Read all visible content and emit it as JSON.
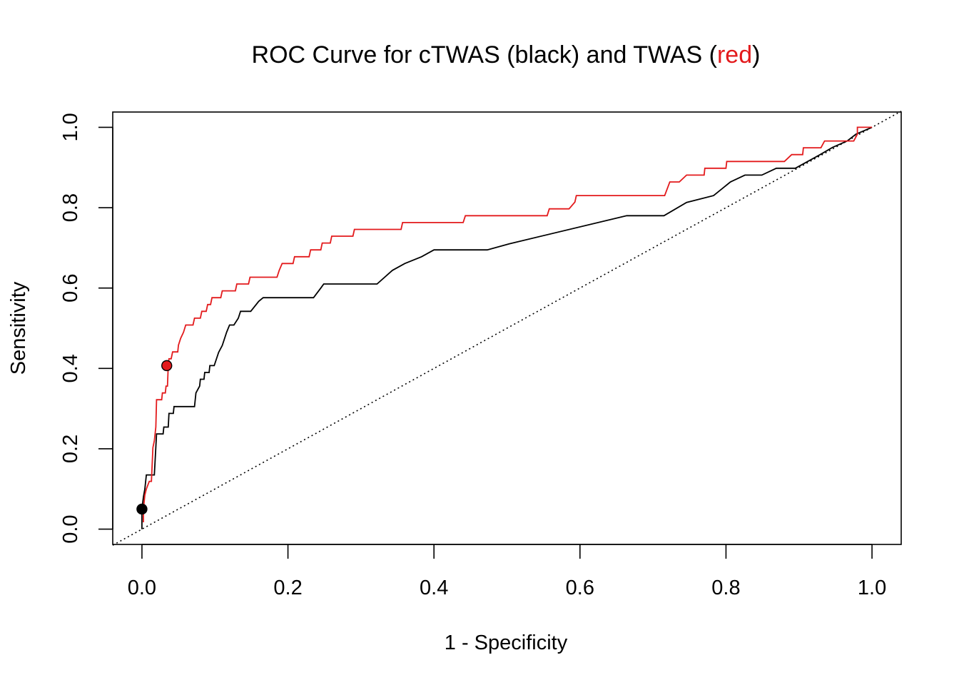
{
  "chart_data": {
    "type": "line",
    "title": {
      "prefix": "ROC Curve for cTWAS (black) and TWAS (",
      "highlight": "red",
      "suffix": ")",
      "highlight_color": "#e31a1c"
    },
    "xlabel": "1 - Specificity",
    "ylabel": "Sensitivity",
    "xlim": [
      -0.04,
      1.04
    ],
    "ylim": [
      -0.038,
      1.038
    ],
    "x_ticks": [
      0.0,
      0.2,
      0.4,
      0.6,
      0.8,
      1.0
    ],
    "y_ticks": [
      0.0,
      0.2,
      0.4,
      0.6,
      0.8,
      1.0
    ],
    "x_tick_labels": [
      "0.0",
      "0.2",
      "0.4",
      "0.6",
      "0.8",
      "1.0"
    ],
    "y_tick_labels": [
      "0.0",
      "0.2",
      "0.4",
      "0.6",
      "0.8",
      "1.0"
    ],
    "grid": false,
    "diagonal": {
      "from": [
        -0.04,
        -0.04
      ],
      "to": [
        1.04,
        1.04
      ],
      "style": "dotted"
    },
    "series": [
      {
        "color": "#000000",
        "points": [
          [
            0,
            0
          ],
          [
            0,
            0.05
          ],
          [
            0.002,
            0.08
          ],
          [
            0.004,
            0.1
          ],
          [
            0.006,
            0.135
          ],
          [
            0.017,
            0.135
          ],
          [
            0.02,
            0.237
          ],
          [
            0.029,
            0.237
          ],
          [
            0.03,
            0.254
          ],
          [
            0.036,
            0.254
          ],
          [
            0.037,
            0.288
          ],
          [
            0.043,
            0.288
          ],
          [
            0.044,
            0.305
          ],
          [
            0.072,
            0.305
          ],
          [
            0.074,
            0.339
          ],
          [
            0.079,
            0.356
          ],
          [
            0.08,
            0.373
          ],
          [
            0.085,
            0.373
          ],
          [
            0.086,
            0.39
          ],
          [
            0.092,
            0.39
          ],
          [
            0.093,
            0.407
          ],
          [
            0.099,
            0.407
          ],
          [
            0.105,
            0.44
          ],
          [
            0.11,
            0.457
          ],
          [
            0.116,
            0.49
          ],
          [
            0.12,
            0.508
          ],
          [
            0.126,
            0.508
          ],
          [
            0.132,
            0.525
          ],
          [
            0.135,
            0.542
          ],
          [
            0.149,
            0.542
          ],
          [
            0.16,
            0.567
          ],
          [
            0.166,
            0.576
          ],
          [
            0.235,
            0.576
          ],
          [
            0.245,
            0.6
          ],
          [
            0.249,
            0.61
          ],
          [
            0.322,
            0.61
          ],
          [
            0.343,
            0.644
          ],
          [
            0.36,
            0.661
          ],
          [
            0.383,
            0.678
          ],
          [
            0.4,
            0.695
          ],
          [
            0.473,
            0.695
          ],
          [
            0.503,
            0.71
          ],
          [
            0.664,
            0.78
          ],
          [
            0.715,
            0.78
          ],
          [
            0.746,
            0.813
          ],
          [
            0.783,
            0.83
          ],
          [
            0.806,
            0.864
          ],
          [
            0.826,
            0.881
          ],
          [
            0.849,
            0.881
          ],
          [
            0.869,
            0.898
          ],
          [
            0.895,
            0.898
          ],
          [
            0.929,
            0.932
          ],
          [
            0.946,
            0.95
          ],
          [
            0.966,
            0.966
          ],
          [
            0.978,
            0.983
          ],
          [
            1.0,
            1.0
          ]
        ]
      },
      {
        "color": "#e31a1c",
        "points": [
          [
            0.002,
            0.017
          ],
          [
            0.002,
            0.05
          ],
          [
            0.004,
            0.085
          ],
          [
            0.006,
            0.1
          ],
          [
            0.01,
            0.119
          ],
          [
            0.013,
            0.119
          ],
          [
            0.015,
            0.203
          ],
          [
            0.017,
            0.22
          ],
          [
            0.019,
            0.254
          ],
          [
            0.02,
            0.322
          ],
          [
            0.027,
            0.322
          ],
          [
            0.028,
            0.339
          ],
          [
            0.032,
            0.339
          ],
          [
            0.033,
            0.356
          ],
          [
            0.035,
            0.356
          ],
          [
            0.036,
            0.407
          ],
          [
            0.037,
            0.424
          ],
          [
            0.04,
            0.424
          ],
          [
            0.042,
            0.441
          ],
          [
            0.049,
            0.441
          ],
          [
            0.05,
            0.458
          ],
          [
            0.053,
            0.475
          ],
          [
            0.057,
            0.49
          ],
          [
            0.06,
            0.508
          ],
          [
            0.07,
            0.508
          ],
          [
            0.072,
            0.525
          ],
          [
            0.08,
            0.525
          ],
          [
            0.082,
            0.542
          ],
          [
            0.088,
            0.542
          ],
          [
            0.09,
            0.559
          ],
          [
            0.094,
            0.559
          ],
          [
            0.096,
            0.576
          ],
          [
            0.108,
            0.576
          ],
          [
            0.11,
            0.593
          ],
          [
            0.128,
            0.593
          ],
          [
            0.13,
            0.61
          ],
          [
            0.146,
            0.61
          ],
          [
            0.148,
            0.627
          ],
          [
            0.185,
            0.627
          ],
          [
            0.188,
            0.644
          ],
          [
            0.192,
            0.661
          ],
          [
            0.207,
            0.661
          ],
          [
            0.209,
            0.678
          ],
          [
            0.229,
            0.678
          ],
          [
            0.231,
            0.695
          ],
          [
            0.245,
            0.695
          ],
          [
            0.247,
            0.712
          ],
          [
            0.258,
            0.712
          ],
          [
            0.26,
            0.729
          ],
          [
            0.289,
            0.729
          ],
          [
            0.291,
            0.746
          ],
          [
            0.355,
            0.746
          ],
          [
            0.357,
            0.763
          ],
          [
            0.44,
            0.763
          ],
          [
            0.443,
            0.78
          ],
          [
            0.555,
            0.78
          ],
          [
            0.558,
            0.797
          ],
          [
            0.585,
            0.797
          ],
          [
            0.593,
            0.814
          ],
          [
            0.595,
            0.83
          ],
          [
            0.716,
            0.83
          ],
          [
            0.723,
            0.864
          ],
          [
            0.736,
            0.864
          ],
          [
            0.746,
            0.881
          ],
          [
            0.77,
            0.881
          ],
          [
            0.771,
            0.898
          ],
          [
            0.8,
            0.898
          ],
          [
            0.801,
            0.915
          ],
          [
            0.88,
            0.915
          ],
          [
            0.89,
            0.932
          ],
          [
            0.905,
            0.932
          ],
          [
            0.906,
            0.949
          ],
          [
            0.93,
            0.949
          ],
          [
            0.935,
            0.966
          ],
          [
            0.975,
            0.966
          ],
          [
            0.98,
            0.983
          ],
          [
            0.98,
            1.0
          ],
          [
            1.0,
            1.0
          ]
        ]
      }
    ],
    "markers": [
      {
        "x": 0.0,
        "y": 0.05,
        "color": "#000000"
      },
      {
        "x": 0.034,
        "y": 0.407,
        "color": "#e31a1c"
      }
    ]
  }
}
